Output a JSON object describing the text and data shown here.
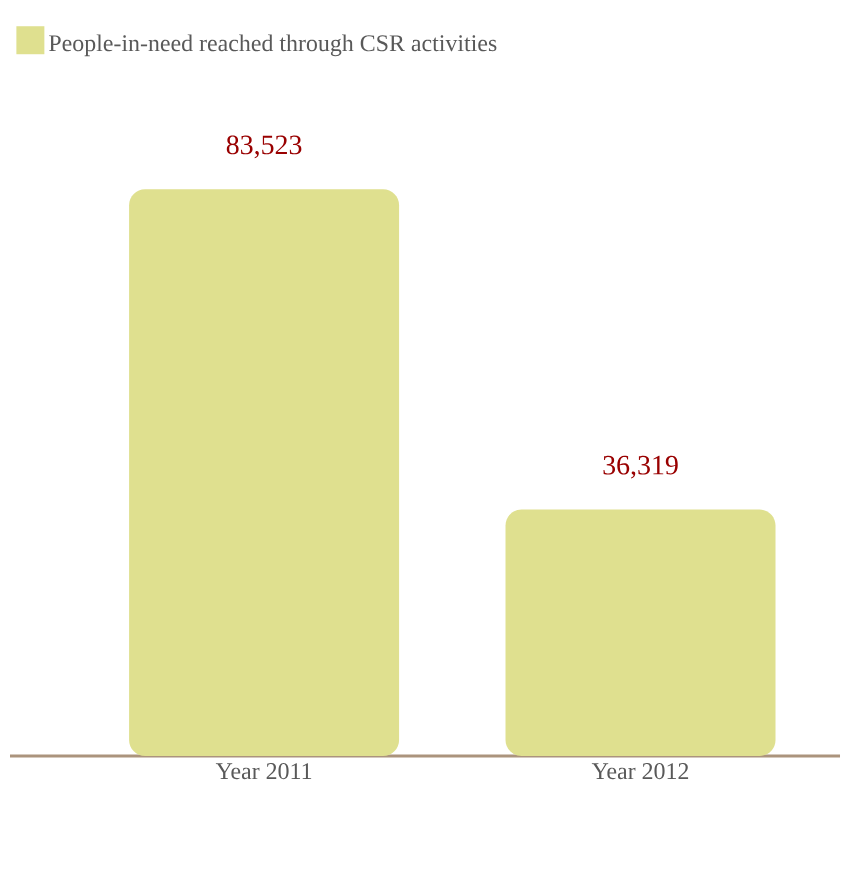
{
  "chart_data": {
    "type": "bar",
    "categories": [
      "Year 2011",
      "Year 2012"
    ],
    "series": [
      {
        "name": "People-in-need reached through CSR activities",
        "color": "#dfe08f",
        "values": [
          83523,
          36319
        ],
        "value_labels": [
          "83,523",
          "36,319"
        ]
      }
    ],
    "legend": "top left",
    "grid": false
  }
}
